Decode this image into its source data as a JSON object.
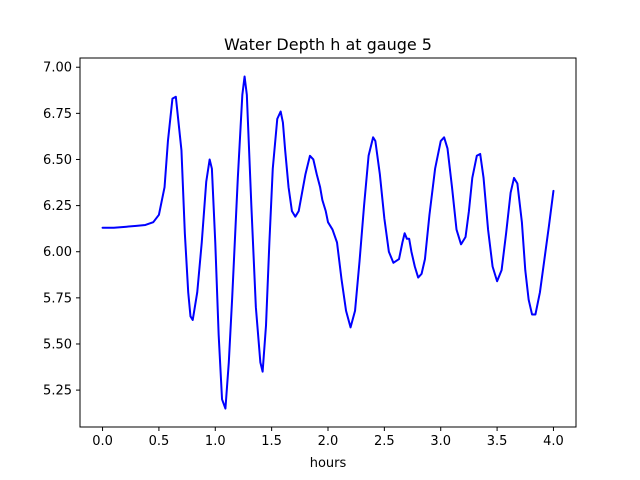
{
  "chart_data": {
    "type": "line",
    "title": "Water Depth h at gauge 5",
    "xlabel": "hours",
    "ylabel": "",
    "xlim": [
      -0.2,
      4.2
    ],
    "ylim": [
      5.05,
      7.05
    ],
    "xticks": [
      0.0,
      0.5,
      1.0,
      1.5,
      2.0,
      2.5,
      3.0,
      3.5,
      4.0
    ],
    "xtick_labels": [
      "0.0",
      "0.5",
      "1.0",
      "1.5",
      "2.0",
      "2.5",
      "3.0",
      "3.5",
      "4.0"
    ],
    "yticks": [
      5.25,
      5.5,
      5.75,
      6.0,
      6.25,
      6.5,
      6.75,
      7.0
    ],
    "ytick_labels": [
      "5.25",
      "5.50",
      "5.75",
      "6.00",
      "6.25",
      "6.50",
      "6.75",
      "7.00"
    ],
    "grid": false,
    "series": [
      {
        "color": "#0000ff",
        "x": [
          0.0,
          0.1,
          0.2,
          0.3,
          0.38,
          0.45,
          0.5,
          0.55,
          0.58,
          0.62,
          0.65,
          0.7,
          0.73,
          0.76,
          0.78,
          0.8,
          0.84,
          0.88,
          0.92,
          0.95,
          0.97,
          1.0,
          1.03,
          1.06,
          1.09,
          1.12,
          1.15,
          1.2,
          1.24,
          1.26,
          1.28,
          1.32,
          1.36,
          1.4,
          1.42,
          1.45,
          1.48,
          1.51,
          1.55,
          1.58,
          1.6,
          1.62,
          1.65,
          1.68,
          1.71,
          1.74,
          1.77,
          1.8,
          1.84,
          1.87,
          1.9,
          1.93,
          1.95,
          1.98,
          2.0,
          2.04,
          2.08,
          2.12,
          2.16,
          2.2,
          2.24,
          2.28,
          2.32,
          2.36,
          2.4,
          2.42,
          2.46,
          2.5,
          2.54,
          2.58,
          2.63,
          2.66,
          2.68,
          2.7,
          2.72,
          2.74,
          2.77,
          2.8,
          2.83,
          2.86,
          2.9,
          2.95,
          3.0,
          3.03,
          3.06,
          3.1,
          3.14,
          3.18,
          3.22,
          3.25,
          3.28,
          3.32,
          3.35,
          3.38,
          3.42,
          3.46,
          3.5,
          3.54,
          3.58,
          3.62,
          3.65,
          3.68,
          3.72,
          3.75,
          3.78,
          3.81,
          3.84,
          3.88,
          3.92,
          3.96,
          4.0
        ],
        "y": [
          6.13,
          6.13,
          6.135,
          6.14,
          6.145,
          6.16,
          6.2,
          6.35,
          6.6,
          6.83,
          6.84,
          6.55,
          6.1,
          5.78,
          5.65,
          5.63,
          5.78,
          6.05,
          6.38,
          6.5,
          6.45,
          6.05,
          5.55,
          5.2,
          5.15,
          5.4,
          5.75,
          6.4,
          6.85,
          6.95,
          6.85,
          6.25,
          5.7,
          5.4,
          5.35,
          5.6,
          6.05,
          6.45,
          6.72,
          6.76,
          6.7,
          6.55,
          6.35,
          6.22,
          6.19,
          6.22,
          6.32,
          6.42,
          6.52,
          6.5,
          6.42,
          6.35,
          6.28,
          6.22,
          6.16,
          6.12,
          6.05,
          5.85,
          5.68,
          5.59,
          5.68,
          5.95,
          6.25,
          6.52,
          6.62,
          6.6,
          6.42,
          6.18,
          6.0,
          5.94,
          5.96,
          6.05,
          6.1,
          6.07,
          6.07,
          6.0,
          5.92,
          5.86,
          5.88,
          5.96,
          6.2,
          6.45,
          6.6,
          6.62,
          6.56,
          6.35,
          6.12,
          6.04,
          6.08,
          6.22,
          6.4,
          6.52,
          6.53,
          6.4,
          6.12,
          5.92,
          5.84,
          5.9,
          6.1,
          6.32,
          6.4,
          6.37,
          6.16,
          5.9,
          5.74,
          5.66,
          5.66,
          5.78,
          5.96,
          6.14,
          6.33
        ]
      }
    ]
  }
}
